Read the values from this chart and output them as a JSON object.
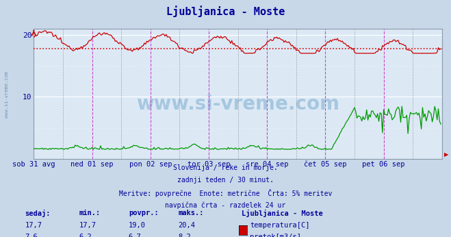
{
  "title": "Ljubljanica - Moste",
  "title_color": "#000099",
  "bg_color": "#c8d8e8",
  "plot_bg_color": "#dce9f5",
  "grid_color": "#ffffff",
  "watermark_text": "www.si-vreme.com",
  "watermark_color": "#4477aa",
  "left_text": "www.si-vreme.com",
  "xlabel_color": "#000099",
  "ylabel_color": "#000099",
  "xlim": [
    0,
    336
  ],
  "ylim": [
    0,
    21
  ],
  "yticks": [
    10,
    20
  ],
  "x_day_labels": [
    "sob 31 avg",
    "ned 01 sep",
    "pon 02 sep",
    "tor 03 sep",
    "sre 04 sep",
    "čet 05 sep",
    "pet 06 sep"
  ],
  "x_day_positions": [
    0,
    48,
    96,
    144,
    192,
    240,
    288
  ],
  "avg_line_y": 17.7,
  "avg_line_color": "#dd0000",
  "temp_color": "#cc0000",
  "flow_color": "#009900",
  "info_lines": [
    "Slovenija / reke in morje.",
    "zadnji teden / 30 minut.",
    "Meritve: povprečne  Enote: metrične  Črta: 5% meritev",
    "navpična črta - razdelek 24 ur"
  ],
  "stats_headers": [
    "sedaj:",
    "min.:",
    "povpr.:",
    "maks.:"
  ],
  "legend_title": "Ljubljanica - Moste",
  "legend_entries": [
    "temperatura[C]",
    "pretok[m3/s]"
  ],
  "legend_colors": [
    "#cc0000",
    "#009900"
  ],
  "stats_temp": [
    "17,7",
    "17,7",
    "19,0",
    "20,4"
  ],
  "stats_flow": [
    "7,6",
    "6,2",
    "6,7",
    "8,2"
  ],
  "vertical_line_color": "#cc44cc",
  "noon_line_color": "#888888",
  "border_color": "#8899aa",
  "arrow_color": "#cc0000"
}
